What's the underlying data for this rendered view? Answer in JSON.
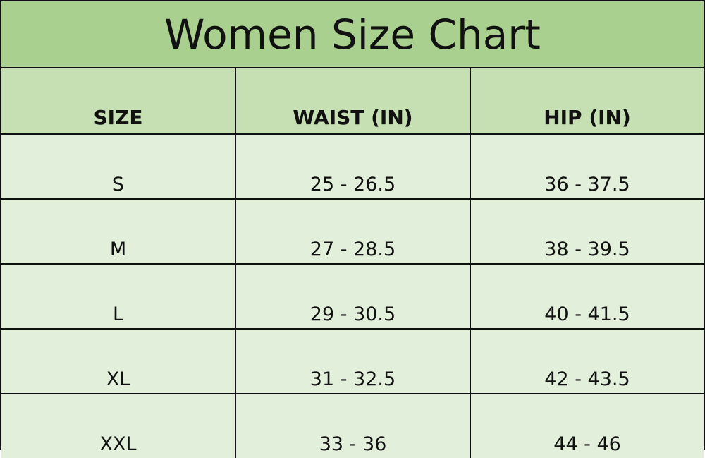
{
  "title": "Women Size Chart",
  "colors": {
    "title_bg": "#a9d08e",
    "header_bg": "#c6e0b4",
    "body_bg": "#e2efda",
    "border": "#111111"
  },
  "headers": [
    "SIZE",
    "WAIST (IN)",
    "HIP (IN)"
  ],
  "rows": [
    [
      "S",
      "25 - 26.5",
      "36 - 37.5"
    ],
    [
      "M",
      "27 - 28.5",
      "38 - 39.5"
    ],
    [
      "L",
      "29 - 30.5",
      "40 - 41.5"
    ],
    [
      "XL",
      "31 - 32.5",
      "42 - 43.5"
    ],
    [
      "XXL",
      "33 - 36",
      "44 - 46"
    ]
  ]
}
